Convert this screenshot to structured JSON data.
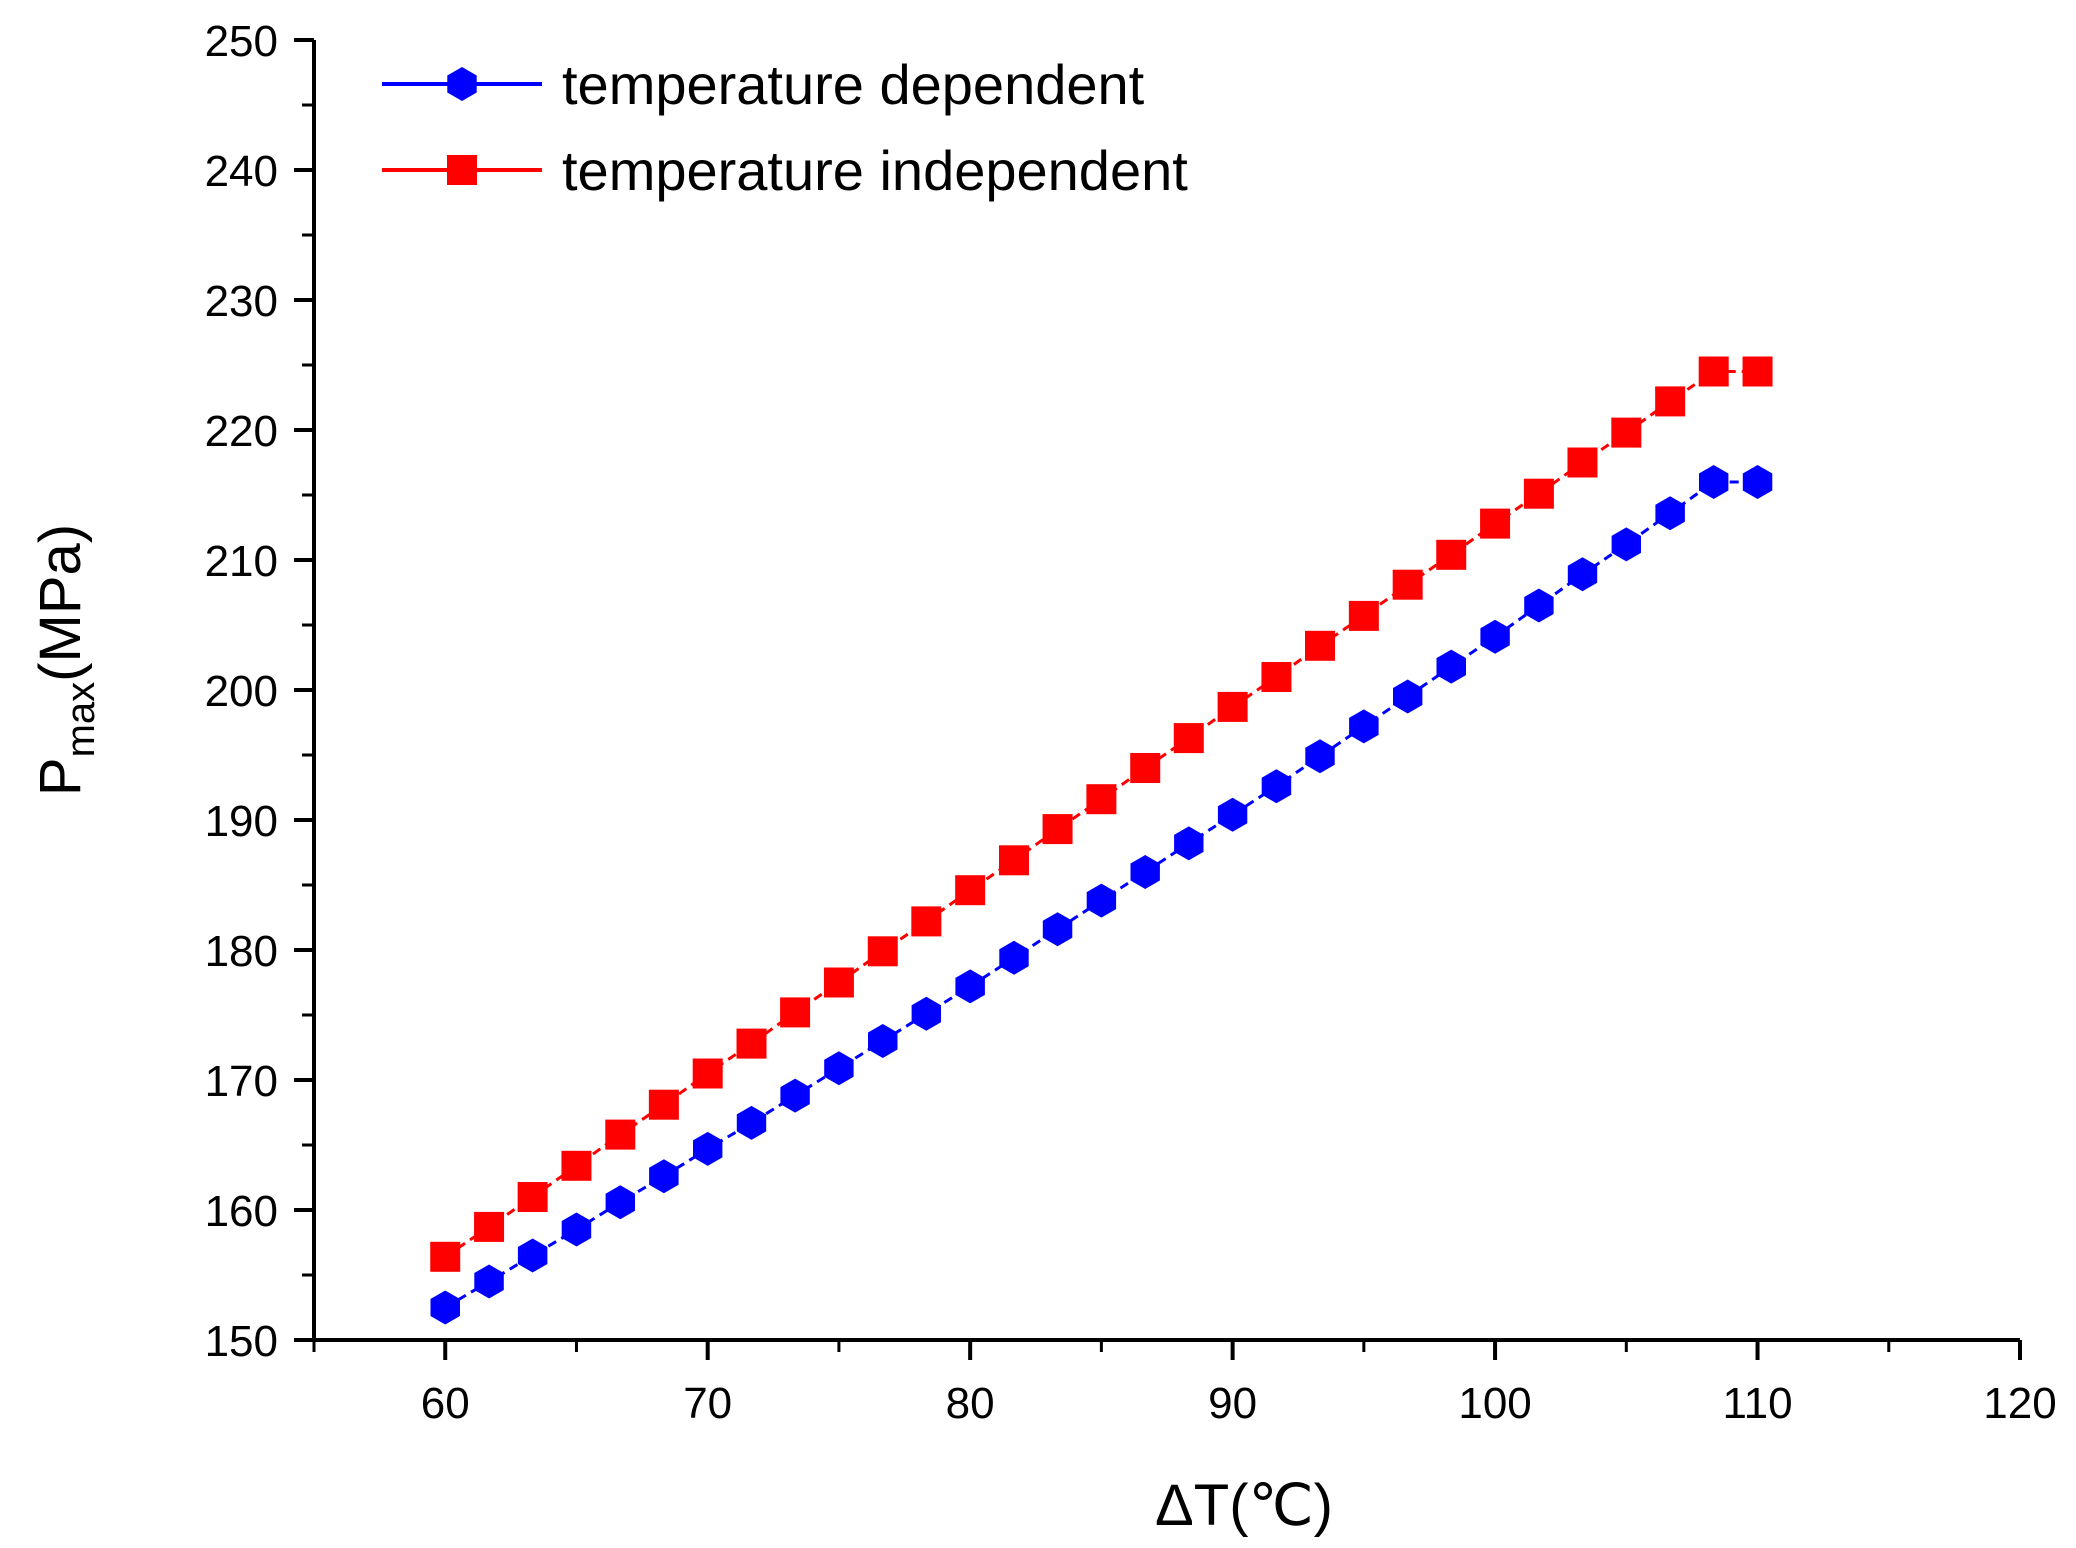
{
  "chart_data": {
    "type": "line",
    "title": "",
    "xlabel": "ΔT(℃)",
    "ylabel": {
      "main": "P",
      "sub": "max",
      "unit": "(MPa)"
    },
    "xlim": [
      55,
      120
    ],
    "ylim": [
      150,
      250
    ],
    "x_ticks": [
      "60",
      "70",
      "80",
      "90",
      "100",
      "110",
      "120"
    ],
    "y_ticks": [
      "150",
      "160",
      "170",
      "180",
      "190",
      "200",
      "210",
      "220",
      "230",
      "240",
      "250"
    ],
    "legend_position": "top-left",
    "x": [
      60,
      61.67,
      63.33,
      65,
      66.67,
      68.33,
      70,
      71.67,
      73.33,
      75,
      76.67,
      78.33,
      80,
      81.67,
      83.33,
      85,
      86.67,
      88.33,
      90,
      91.67,
      93.33,
      95,
      96.67,
      98.33,
      100,
      101.67,
      103.33,
      105,
      106.67,
      108.33,
      110
    ],
    "series": [
      {
        "name": "temperature dependent",
        "color": "#0000ff",
        "marker": "hexagon",
        "line_style": "dashed",
        "values": [
          152.5,
          154.5,
          156.5,
          158.5,
          160.6,
          162.6,
          164.7,
          166.7,
          168.8,
          170.9,
          173.0,
          175.1,
          177.2,
          179.4,
          181.6,
          183.8,
          186.0,
          188.2,
          190.4,
          192.6,
          194.9,
          197.2,
          199.5,
          201.8,
          204.1,
          206.5,
          208.9,
          211.2,
          213.6,
          216.0,
          216.0
        ]
      },
      {
        "name": "temperature independent",
        "color": "#ff0000",
        "marker": "square",
        "line_style": "dashed",
        "values": [
          156.4,
          158.7,
          161.0,
          163.4,
          165.8,
          168.1,
          170.5,
          172.8,
          175.2,
          177.5,
          179.9,
          182.2,
          184.6,
          186.9,
          189.3,
          191.6,
          194.0,
          196.3,
          198.7,
          201.0,
          203.4,
          205.7,
          208.1,
          210.4,
          212.8,
          215.1,
          217.5,
          219.8,
          222.2,
          224.5,
          224.5
        ]
      }
    ]
  }
}
